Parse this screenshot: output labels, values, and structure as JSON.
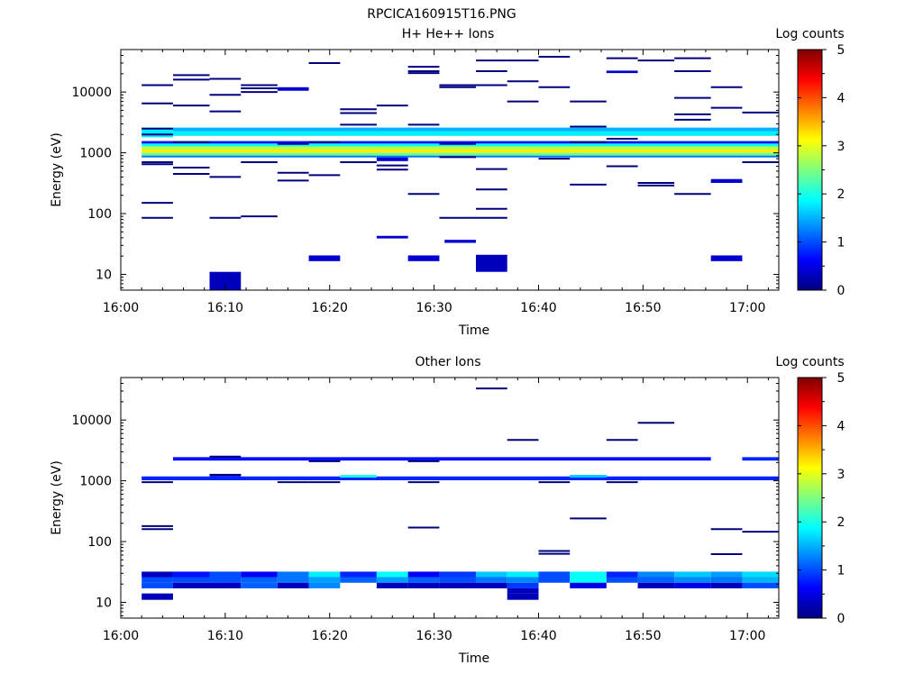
{
  "figure_title": "RPCICA160915T16.PNG",
  "colors": {
    "colormap": [
      "#00007f",
      "#0000ff",
      "#007fff",
      "#00ffff",
      "#7fff7f",
      "#ffff00",
      "#ff7f00",
      "#ff0000",
      "#7f0000"
    ]
  },
  "chart_data": [
    {
      "type": "heatmap",
      "title": "H+ He++ Ions",
      "xlabel": "Time",
      "ylabel": "Energy (eV)",
      "x_ticks": [
        "16:00",
        "16:10",
        "16:20",
        "16:30",
        "16:40",
        "16:50",
        "17:00"
      ],
      "y_ticks": [
        "10",
        "100",
        "1000",
        "10000"
      ],
      "xlim_min": [
        0,
        63
      ],
      "ylim_eV": [
        5.5,
        50000
      ],
      "y_scale": "log",
      "colorbar": {
        "label": "Log counts",
        "range": [
          0,
          5
        ],
        "ticks": [
          "0",
          "1",
          "2",
          "3",
          "4",
          "5"
        ]
      },
      "cells": [
        {
          "t": [
            2,
            5
          ],
          "e": [
            1800,
            2600
          ],
          "v": 1.8
        },
        {
          "t": [
            5,
            63
          ],
          "e": [
            2250,
            2600
          ],
          "v": 1.5
        },
        {
          "t": [
            5,
            63
          ],
          "e": [
            1900,
            2250
          ],
          "v": 1.8
        },
        {
          "t": [
            2,
            63
          ],
          "e": [
            1270,
            1420
          ],
          "v": 1.9
        },
        {
          "t": [
            2,
            63
          ],
          "e": [
            1130,
            1270
          ],
          "v": 2.8
        },
        {
          "t": [
            2,
            63
          ],
          "e": [
            1000,
            1130
          ],
          "v": 3.2
        },
        {
          "t": [
            2,
            63
          ],
          "e": [
            900,
            1000
          ],
          "v": 2.4
        },
        {
          "t": [
            2,
            63
          ],
          "e": [
            840,
            900
          ],
          "v": 1.2
        },
        {
          "t": [
            2,
            63
          ],
          "e": [
            1420,
            1560
          ],
          "v": 0.7
        },
        {
          "t": [
            8.5,
            11.5
          ],
          "e": [
            5.5,
            11
          ],
          "v": 0.3
        },
        {
          "t": [
            18,
            21
          ],
          "e": [
            16.5,
            20.5
          ],
          "v": 0.4
        },
        {
          "t": [
            27.5,
            30.5
          ],
          "e": [
            16.5,
            20.5
          ],
          "v": 0.4
        },
        {
          "t": [
            34,
            37
          ],
          "e": [
            11,
            21
          ],
          "v": 0.3
        },
        {
          "t": [
            56.5,
            59.5
          ],
          "e": [
            16.5,
            20.5
          ],
          "v": 0.4
        },
        {
          "t": [
            24.5,
            27.5
          ],
          "e": [
            39,
            43
          ],
          "v": 0.4
        },
        {
          "t": [
            31,
            34
          ],
          "e": [
            33,
            37
          ],
          "v": 0.4
        },
        {
          "t": [
            24.5,
            27.5
          ],
          "e": [
            730,
            840
          ],
          "v": 0.4
        },
        {
          "t": [
            15,
            18
          ],
          "e": [
            10500,
            12000
          ],
          "v": 0.4
        },
        {
          "t": [
            46.5,
            49.5
          ],
          "e": [
            20500,
            22500
          ],
          "v": 0.4
        },
        {
          "t": [
            56.5,
            59.5
          ],
          "e": [
            320,
            370
          ],
          "v": 0.4
        }
      ],
      "lines": [
        {
          "t": [
            2,
            5
          ],
          "e": [
            13000,
            150,
            85,
            2500,
            2000,
            700,
            650,
            6500
          ]
        },
        {
          "t": [
            5,
            8.5
          ],
          "e": [
            19000,
            16000,
            6000,
            1500,
            570,
            450
          ]
        },
        {
          "t": [
            8.5,
            11.5
          ],
          "e": [
            16500,
            9000,
            4800,
            400,
            85
          ]
        },
        {
          "t": [
            11.5,
            15
          ],
          "e": [
            13000,
            11500,
            10000,
            700,
            90
          ]
        },
        {
          "t": [
            15,
            18
          ],
          "e": [
            1400,
            470,
            350
          ]
        },
        {
          "t": [
            18,
            21
          ],
          "e": [
            30000,
            1500,
            430
          ]
        },
        {
          "t": [
            21,
            24.5
          ],
          "e": [
            5200,
            4500,
            2900,
            700
          ]
        },
        {
          "t": [
            24.5,
            27.5
          ],
          "e": [
            6000,
            620,
            530
          ]
        },
        {
          "t": [
            27.5,
            30.5
          ],
          "e": [
            26000,
            22000,
            20500,
            2900,
            210
          ]
        },
        {
          "t": [
            30.5,
            34
          ],
          "e": [
            13000,
            12000,
            1400,
            850,
            85
          ]
        },
        {
          "t": [
            34,
            37
          ],
          "e": [
            33000,
            22000,
            13000,
            540,
            250,
            120,
            85
          ]
        },
        {
          "t": [
            37,
            40
          ],
          "e": [
            33000,
            15000,
            7000
          ]
        },
        {
          "t": [
            40,
            43
          ],
          "e": [
            38000,
            12000,
            800
          ]
        },
        {
          "t": [
            43,
            46.5
          ],
          "e": [
            7000,
            2700,
            1500,
            300
          ]
        },
        {
          "t": [
            46.5,
            49.5
          ],
          "e": [
            36000,
            1700,
            600
          ]
        },
        {
          "t": [
            49.5,
            53
          ],
          "e": [
            33000,
            320,
            290
          ]
        },
        {
          "t": [
            53,
            56.5
          ],
          "e": [
            36000,
            22000,
            8000,
            4300,
            3500,
            210
          ]
        },
        {
          "t": [
            56.5,
            59.5
          ],
          "e": [
            12000,
            5500
          ]
        },
        {
          "t": [
            59.5,
            63
          ],
          "e": [
            4600,
            700
          ]
        }
      ]
    },
    {
      "type": "heatmap",
      "title": "Other Ions",
      "xlabel": "Time",
      "ylabel": "Energy (eV)",
      "x_ticks": [
        "16:00",
        "16:10",
        "16:20",
        "16:30",
        "16:40",
        "16:50",
        "17:00"
      ],
      "y_ticks": [
        "10",
        "100",
        "1000",
        "10000"
      ],
      "xlim_min": [
        0,
        63
      ],
      "ylim_eV": [
        5.5,
        50000
      ],
      "y_scale": "log",
      "colorbar": {
        "label": "Log counts",
        "range": [
          0,
          5
        ],
        "ticks": [
          "0",
          "1",
          "2",
          "3",
          "4",
          "5"
        ]
      },
      "low_energy_columns": {
        "bins": [
          [
            26,
            32
          ],
          [
            21,
            26
          ],
          [
            17,
            21
          ],
          [
            14,
            17
          ],
          [
            11,
            14
          ]
        ],
        "columns": [
          {
            "t": [
              2,
              5
            ],
            "v": [
              0.3,
              1.0,
              1.0,
              null,
              0.3
            ]
          },
          {
            "t": [
              5,
              8.5
            ],
            "v": [
              0.7,
              1.0,
              0.3,
              null,
              null
            ]
          },
          {
            "t": [
              8.5,
              11.5
            ],
            "v": [
              1.0,
              1.0,
              0.3,
              null,
              null
            ]
          },
          {
            "t": [
              11.5,
              15
            ],
            "v": [
              0.6,
              1.1,
              1.1,
              null,
              null
            ]
          },
          {
            "t": [
              15,
              18
            ],
            "v": [
              1.2,
              1.2,
              0.3,
              null,
              null
            ]
          },
          {
            "t": [
              18,
              21
            ],
            "v": [
              1.8,
              1.4,
              1.3,
              null,
              null
            ]
          },
          {
            "t": [
              21,
              24.5
            ],
            "v": [
              0.8,
              1.1,
              null,
              null,
              null
            ]
          },
          {
            "t": [
              24.5,
              27.5
            ],
            "v": [
              1.9,
              1.4,
              0.3,
              null,
              null
            ]
          },
          {
            "t": [
              27.5,
              30.5
            ],
            "v": [
              0.6,
              1.1,
              0.3,
              null,
              null
            ]
          },
          {
            "t": [
              30.5,
              34
            ],
            "v": [
              0.9,
              1.0,
              0.3,
              null,
              null
            ]
          },
          {
            "t": [
              34,
              37
            ],
            "v": [
              1.6,
              1.2,
              0.3,
              null,
              null
            ]
          },
          {
            "t": [
              37,
              40
            ],
            "v": [
              1.8,
              1.3,
              0.9,
              0.3,
              0.3
            ]
          },
          {
            "t": [
              40,
              43
            ],
            "v": [
              1.0,
              1.0,
              null,
              null,
              null
            ]
          },
          {
            "t": [
              43,
              46.5
            ],
            "v": [
              1.9,
              1.9,
              0.5,
              null,
              null
            ]
          },
          {
            "t": [
              46.5,
              49.5
            ],
            "v": [
              0.8,
              1.0,
              null,
              null,
              null
            ]
          },
          {
            "t": [
              49.5,
              53
            ],
            "v": [
              1.3,
              1.1,
              0.3,
              null,
              null
            ]
          },
          {
            "t": [
              53,
              56.5
            ],
            "v": [
              1.6,
              1.3,
              0.5,
              null,
              null
            ]
          },
          {
            "t": [
              56.5,
              59.5
            ],
            "v": [
              1.4,
              1.2,
              0.3,
              null,
              null
            ]
          },
          {
            "t": [
              59.5,
              63
            ],
            "v": [
              1.7,
              1.5,
              1.0,
              null,
              null
            ]
          }
        ]
      },
      "cells": [
        {
          "t": [
            2,
            63
          ],
          "e": [
            1020,
            1180
          ],
          "v": 0.8
        },
        {
          "t": [
            5,
            56.5
          ],
          "e": [
            2150,
            2450
          ],
          "v": 0.7
        },
        {
          "t": [
            59.5,
            63
          ],
          "e": [
            2150,
            2450
          ],
          "v": 0.8
        },
        {
          "t": [
            8.5,
            11.5
          ],
          "e": [
            1180,
            1300
          ],
          "v": 0.5
        },
        {
          "t": [
            21,
            24.5
          ],
          "e": [
            1130,
            1250
          ],
          "v": 2.0
        },
        {
          "t": [
            43,
            46.5
          ],
          "e": [
            1130,
            1250
          ],
          "v": 1.6
        }
      ],
      "lines": [
        {
          "t": [
            2,
            5
          ],
          "e": [
            180,
            160,
            950
          ]
        },
        {
          "t": [
            8.5,
            11.5
          ],
          "e": [
            2500,
            1250
          ]
        },
        {
          "t": [
            15,
            18
          ],
          "e": [
            950
          ]
        },
        {
          "t": [
            18,
            21
          ],
          "e": [
            2100,
            950
          ]
        },
        {
          "t": [
            27.5,
            30.5
          ],
          "e": [
            170,
            2100,
            950
          ]
        },
        {
          "t": [
            34,
            37
          ],
          "e": [
            33000
          ]
        },
        {
          "t": [
            37,
            40
          ],
          "e": [
            4700
          ]
        },
        {
          "t": [
            40,
            43
          ],
          "e": [
            70,
            63,
            950
          ]
        },
        {
          "t": [
            43,
            46.5
          ],
          "e": [
            240
          ]
        },
        {
          "t": [
            46.5,
            49.5
          ],
          "e": [
            4700,
            950
          ]
        },
        {
          "t": [
            49.5,
            53
          ],
          "e": [
            9000
          ]
        },
        {
          "t": [
            56.5,
            59.5
          ],
          "e": [
            160,
            62
          ]
        },
        {
          "t": [
            59.5,
            63
          ],
          "e": [
            145
          ]
        }
      ]
    }
  ]
}
